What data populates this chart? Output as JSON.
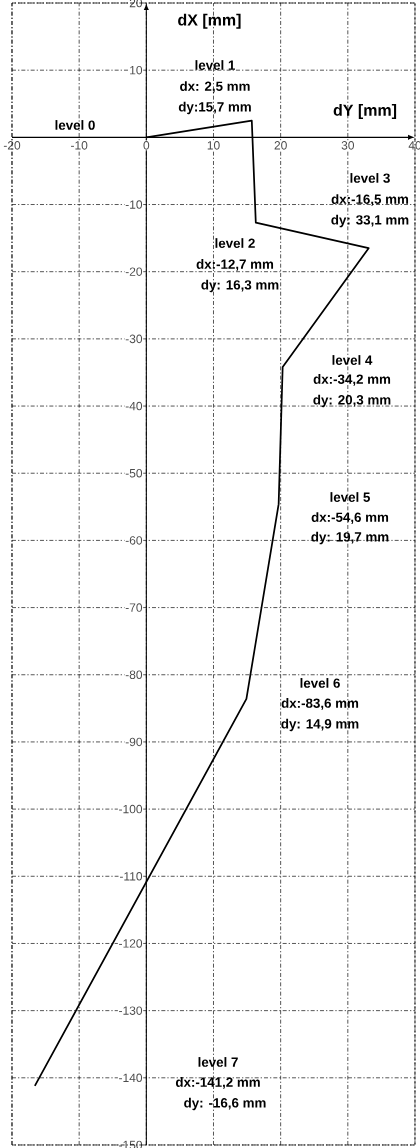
{
  "chart_data": {
    "type": "line",
    "xlabel": "dY [mm]",
    "ylabel": "dX [mm]",
    "x": [
      0,
      15.7,
      16.3,
      33.1,
      20.3,
      19.7,
      14.9,
      -16.6
    ],
    "series": [
      {
        "color": "#000000",
        "values": [
          0,
          2.5,
          -12.7,
          -16.5,
          -34.2,
          -54.6,
          -83.6,
          -141.2
        ]
      }
    ],
    "xlim": [
      -20,
      40
    ],
    "ylim": [
      -150,
      20
    ],
    "xticks": [
      -20,
      -10,
      0,
      10,
      20,
      30,
      40
    ],
    "yticks": [
      20,
      10,
      -10,
      -20,
      -30,
      -40,
      -50,
      -60,
      -70,
      -80,
      -90,
      -100,
      -110,
      -120,
      -130,
      -140,
      -150
    ],
    "grid": true,
    "annotations": [
      "level 0",
      "level 1",
      "dx:  2,5 mm",
      "dy:15,7 mm",
      "level 2",
      "dx:-12,7 mm",
      "dy: 16,3 mm",
      "level 3",
      "dx:-16,5 mm",
      "dy: 33,1 mm",
      "level 4",
      "dx:-34,2 mm",
      "dy: 20,3 mm",
      "level 5",
      "dx:-54,6 mm",
      "dy: 19,7 mm",
      "level 6",
      "dx:-83,6 mm",
      "dy: 14,9 mm",
      "level 7",
      "dx:-141,2 mm",
      "dy:  -16,6 mm"
    ]
  }
}
